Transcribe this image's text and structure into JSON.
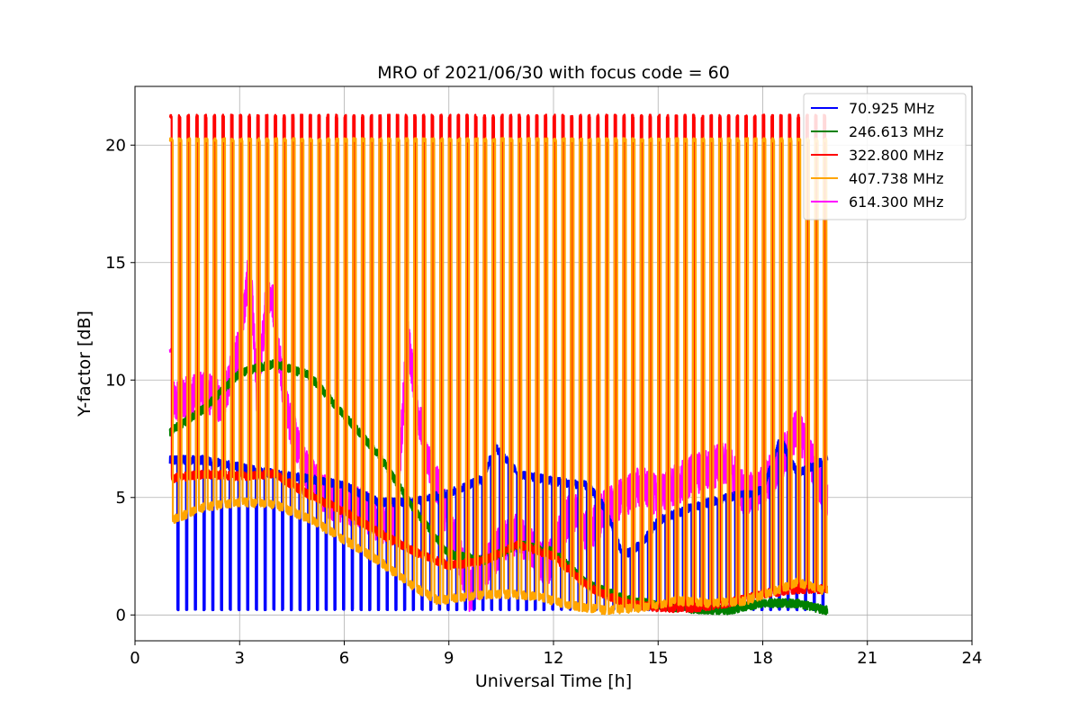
{
  "chart_data": {
    "type": "line",
    "title": "MRO of 2021/06/30 with focus code = 60",
    "xlabel": "Universal Time [h]",
    "ylabel": "Y-factor [dB]",
    "xlim": [
      0,
      24
    ],
    "ylim": [
      -1.1,
      22.5
    ],
    "xticks": [
      0,
      3,
      6,
      9,
      12,
      15,
      18,
      21,
      24
    ],
    "yticks": [
      0,
      5,
      10,
      15,
      20
    ],
    "grid": true,
    "legend_position": "top-right",
    "spike_interval_h": 0.25,
    "x_start_h": 1.0,
    "x_end_h": 19.85,
    "series": [
      {
        "name": "70.925 MHz",
        "color": "#0000ff",
        "spike_low": 0.2,
        "spike_width_h": 0.04,
        "baseline": {
          "x": [
            1.0,
            2.0,
            3.0,
            4.0,
            5.0,
            6.0,
            7.0,
            8.0,
            9.0,
            10.0,
            10.3,
            11.0,
            12.0,
            13.0,
            13.5,
            14.0,
            14.5,
            15.0,
            16.0,
            17.0,
            18.0,
            18.5,
            19.0,
            19.8
          ],
          "y": [
            6.6,
            6.6,
            6.3,
            6.0,
            5.8,
            5.5,
            4.8,
            4.8,
            5.2,
            5.8,
            7.2,
            6.0,
            5.7,
            5.5,
            4.5,
            2.5,
            3.0,
            4.0,
            4.6,
            5.0,
            5.3,
            7.5,
            6.0,
            6.6
          ]
        }
      },
      {
        "name": "246.613 MHz",
        "color": "#008000",
        "baseline": {
          "x": [
            1.0,
            2.0,
            3.0,
            4.0,
            5.0,
            6.0,
            7.0,
            8.0,
            9.0,
            10.0,
            11.0,
            12.0,
            13.0,
            14.0,
            15.0,
            16.0,
            17.0,
            18.0,
            19.0,
            19.8
          ],
          "y": [
            7.8,
            8.8,
            10.3,
            10.7,
            10.2,
            8.5,
            6.8,
            4.5,
            2.6,
            2.3,
            3.0,
            2.7,
            1.3,
            0.7,
            0.4,
            0.25,
            0.2,
            0.5,
            0.5,
            0.2
          ]
        }
      },
      {
        "name": "322.800 MHz",
        "color": "#ff0000",
        "spike_high": 21.3,
        "spike_width_h": 0.05,
        "baseline": {
          "x": [
            1.0,
            2.0,
            3.0,
            4.0,
            5.0,
            6.0,
            7.0,
            8.0,
            9.0,
            10.0,
            11.0,
            12.0,
            13.0,
            14.0,
            15.0,
            16.0,
            17.0,
            18.0,
            19.0,
            19.8
          ],
          "y": [
            5.8,
            6.0,
            5.9,
            6.0,
            5.1,
            4.4,
            3.5,
            2.7,
            2.1,
            2.3,
            3.0,
            2.5,
            1.2,
            0.5,
            0.3,
            0.3,
            0.5,
            0.9,
            1.1,
            1.1
          ]
        }
      },
      {
        "name": "407.738 MHz",
        "color": "#ffa500",
        "spike_high": 20.3,
        "spike_width_h": 0.08,
        "baseline": {
          "x": [
            1.0,
            2.0,
            3.0,
            4.0,
            5.0,
            6.0,
            7.0,
            8.0,
            8.7,
            9.5,
            10.5,
            11.5,
            12.5,
            13.5,
            14.5,
            15.5,
            16.5,
            17.5,
            18.5,
            19.0,
            19.8
          ],
          "y": [
            4.0,
            4.6,
            4.8,
            4.7,
            4.1,
            3.2,
            2.3,
            1.2,
            0.6,
            0.8,
            0.9,
            0.8,
            0.4,
            0.2,
            0.3,
            0.6,
            0.5,
            0.6,
            1.1,
            1.4,
            1.0
          ]
        }
      },
      {
        "name": "614.300 MHz",
        "color": "#ff00ff",
        "spike_high": 11.35,
        "spike_width_h": 0.06,
        "baseline": {
          "x": [
            1.0,
            2.0,
            2.5,
            3.0,
            3.3,
            3.5,
            3.8,
            4.0,
            4.3,
            4.8,
            5.5,
            6.5,
            7.0,
            7.5,
            7.8,
            8.3,
            9.0,
            9.6,
            10.5,
            11.0,
            11.8,
            12.5,
            13.0,
            13.5,
            14.5,
            15.0,
            16.0,
            17.0,
            17.5,
            18.0,
            18.5,
            19.0,
            19.8
          ],
          "y": [
            9.0,
            9.5,
            9.0,
            11.5,
            15.0,
            9.0,
            14.0,
            13.0,
            9.0,
            6.5,
            5.0,
            4.5,
            4.0,
            3.8,
            12.0,
            7.0,
            4.0,
            1.0,
            3.0,
            3.5,
            2.0,
            4.5,
            3.5,
            4.5,
            5.5,
            5.0,
            6.0,
            6.5,
            5.0,
            5.5,
            6.5,
            8.0,
            5.0
          ]
        }
      }
    ]
  }
}
